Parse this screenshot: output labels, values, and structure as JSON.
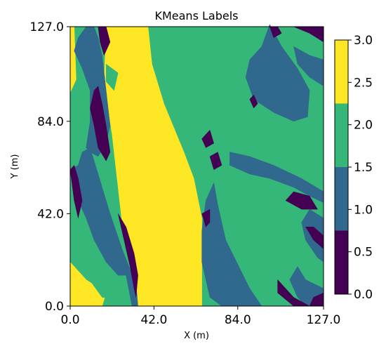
{
  "chart_data": {
    "type": "heatmap",
    "title": "KMeans Labels",
    "xlabel": "X (m)",
    "ylabel": "Y (m)",
    "xlim": [
      0,
      127
    ],
    "ylim": [
      0,
      127
    ],
    "x_ticks": [
      "0.0",
      "42.0",
      "84.0",
      "127.0"
    ],
    "y_ticks": [
      "0.0",
      "42.0",
      "84.0",
      "127.0"
    ],
    "colorbar": {
      "range": [
        0,
        3
      ],
      "ticks": [
        "0.0",
        "0.5",
        "1.0",
        "1.5",
        "2.0",
        "2.5",
        "3.0"
      ],
      "levels": [
        {
          "label": 0,
          "color": "#440154"
        },
        {
          "label": 1,
          "color": "#31688e"
        },
        {
          "label": 2,
          "color": "#35b779"
        },
        {
          "label": 3,
          "color": "#fde725"
        }
      ]
    },
    "regions": [
      {
        "label": 3,
        "polygon": [
          [
            0,
            97
          ],
          [
            3,
            103
          ],
          [
            2,
            127
          ],
          [
            0,
            127
          ]
        ]
      },
      {
        "label": 3,
        "polygon": [
          [
            4,
            0
          ],
          [
            16,
            0
          ],
          [
            18,
            6
          ],
          [
            8,
            12
          ],
          [
            2,
            18
          ],
          [
            0,
            20
          ],
          [
            0,
            0
          ]
        ]
      },
      {
        "label": 3,
        "polygon": [
          [
            18,
            127
          ],
          [
            39,
            127
          ],
          [
            41,
            110
          ],
          [
            47,
            92
          ],
          [
            57,
            70
          ],
          [
            62,
            58
          ],
          [
            66,
            40
          ],
          [
            66,
            0
          ],
          [
            34,
            0
          ],
          [
            33,
            10
          ],
          [
            26,
            38
          ],
          [
            21,
            78
          ],
          [
            17,
            102
          ]
        ]
      },
      {
        "label": 2,
        "polygon": [
          [
            5,
            127
          ],
          [
            11,
            127
          ],
          [
            10,
            118
          ],
          [
            6,
            110
          ],
          [
            4,
            120
          ]
        ]
      },
      {
        "label": 2,
        "polygon": [
          [
            18,
            110
          ],
          [
            24,
            106
          ],
          [
            22,
            98
          ],
          [
            18,
            102
          ]
        ]
      },
      {
        "label": 2,
        "polygon": [
          [
            4,
            30
          ],
          [
            12,
            18
          ],
          [
            20,
            12
          ],
          [
            24,
            3
          ],
          [
            16,
            4
          ],
          [
            8,
            14
          ],
          [
            2,
            26
          ]
        ]
      },
      {
        "label": 2,
        "polygon": [
          [
            40,
            127
          ],
          [
            127,
            127
          ],
          [
            127,
            97
          ],
          [
            115,
            97
          ],
          [
            102,
            91
          ],
          [
            91,
            84
          ],
          [
            90,
            104
          ],
          [
            100,
            118
          ],
          [
            110,
            124
          ],
          [
            98,
            124
          ],
          [
            84,
            110
          ],
          [
            74,
            102
          ],
          [
            64,
            94
          ],
          [
            62,
            84
          ],
          [
            58,
            80
          ],
          [
            55,
            92
          ],
          [
            50,
            106
          ],
          [
            44,
            116
          ]
        ]
      },
      {
        "label": 2,
        "polygon": [
          [
            64,
            84
          ],
          [
            68,
            76
          ],
          [
            80,
            74
          ],
          [
            92,
            74
          ],
          [
            102,
            70
          ],
          [
            115,
            68
          ],
          [
            127,
            71
          ],
          [
            127,
            79
          ],
          [
            114,
            80
          ],
          [
            104,
            80
          ],
          [
            94,
            82
          ],
          [
            82,
            79
          ],
          [
            72,
            80
          ]
        ]
      },
      {
        "label": 2,
        "polygon": [
          [
            78,
            54
          ],
          [
            86,
            42
          ],
          [
            98,
            26
          ],
          [
            106,
            16
          ],
          [
            110,
            10
          ],
          [
            112,
            20
          ],
          [
            114,
            32
          ],
          [
            112,
            44
          ],
          [
            100,
            50
          ],
          [
            88,
            56
          ]
        ]
      },
      {
        "label": 1,
        "polygon": [
          [
            88,
            104
          ],
          [
            92,
            94
          ],
          [
            102,
            88
          ],
          [
            112,
            84
          ],
          [
            119,
            86
          ],
          [
            120,
            98
          ],
          [
            114,
            108
          ],
          [
            106,
            118
          ],
          [
            100,
            128
          ],
          [
            96,
            118
          ],
          [
            90,
            112
          ]
        ]
      },
      {
        "label": 1,
        "polygon": [
          [
            112,
            118
          ],
          [
            120,
            114
          ],
          [
            127,
            112
          ],
          [
            127,
            100
          ],
          [
            120,
            104
          ],
          [
            114,
            110
          ]
        ]
      },
      {
        "label": 1,
        "polygon": [
          [
            127,
            20
          ],
          [
            124,
            22
          ],
          [
            118,
            30
          ],
          [
            116,
            38
          ],
          [
            120,
            44
          ],
          [
            127,
            40
          ]
        ]
      },
      {
        "label": 1,
        "polygon": [
          [
            80,
            64
          ],
          [
            90,
            60
          ],
          [
            100,
            58
          ],
          [
            112,
            54
          ],
          [
            120,
            50
          ],
          [
            127,
            47
          ],
          [
            127,
            52
          ],
          [
            116,
            58
          ],
          [
            102,
            64
          ],
          [
            90,
            68
          ],
          [
            80,
            70
          ]
        ]
      },
      {
        "label": 1,
        "polygon": [
          [
            66,
            20
          ],
          [
            70,
            4
          ],
          [
            76,
            0
          ],
          [
            96,
            0
          ],
          [
            90,
            8
          ],
          [
            78,
            30
          ],
          [
            74,
            46
          ],
          [
            72,
            56
          ],
          [
            68,
            48
          ],
          [
            66,
            34
          ]
        ]
      },
      {
        "label": 1,
        "polygon": [
          [
            0,
            62
          ],
          [
            2,
            52
          ],
          [
            8,
            40
          ],
          [
            12,
            30
          ],
          [
            18,
            20
          ],
          [
            24,
            14
          ],
          [
            28,
            14
          ],
          [
            31,
            0
          ],
          [
            34,
            0
          ],
          [
            33,
            10
          ],
          [
            26,
            26
          ],
          [
            20,
            42
          ],
          [
            14,
            60
          ],
          [
            10,
            72
          ],
          [
            6,
            70
          ],
          [
            4,
            64
          ]
        ]
      },
      {
        "label": 1,
        "polygon": [
          [
            2,
            116
          ],
          [
            6,
            108
          ],
          [
            10,
            98
          ],
          [
            10,
            84
          ],
          [
            8,
            72
          ],
          [
            10,
            70
          ],
          [
            14,
            68
          ],
          [
            18,
            74
          ],
          [
            20,
            82
          ],
          [
            18,
            98
          ],
          [
            16,
            114
          ],
          [
            14,
            122
          ],
          [
            12,
            127
          ],
          [
            8,
            127
          ],
          [
            4,
            122
          ]
        ]
      },
      {
        "label": 1,
        "polygon": [
          [
            110,
            12
          ],
          [
            114,
            4
          ],
          [
            118,
            0
          ],
          [
            127,
            0
          ],
          [
            127,
            8
          ],
          [
            118,
            12
          ],
          [
            114,
            18
          ]
        ]
      },
      {
        "label": 0,
        "polygon": [
          [
            10,
            90
          ],
          [
            12,
            82
          ],
          [
            14,
            72
          ],
          [
            18,
            66
          ],
          [
            20,
            70
          ],
          [
            18,
            82
          ],
          [
            16,
            92
          ],
          [
            14,
            100
          ],
          [
            12,
            98
          ]
        ]
      },
      {
        "label": 0,
        "polygon": [
          [
            0,
            62
          ],
          [
            2,
            48
          ],
          [
            4,
            40
          ],
          [
            6,
            48
          ],
          [
            4,
            58
          ],
          [
            2,
            64
          ]
        ]
      },
      {
        "label": 0,
        "polygon": [
          [
            14,
            127
          ],
          [
            18,
            127
          ],
          [
            20,
            120
          ],
          [
            17,
            114
          ],
          [
            15,
            120
          ]
        ]
      },
      {
        "label": 0,
        "polygon": [
          [
            24,
            42
          ],
          [
            26,
            34
          ],
          [
            28,
            26
          ],
          [
            30,
            18
          ],
          [
            32,
            8
          ],
          [
            33,
            4
          ],
          [
            34,
            14
          ],
          [
            32,
            24
          ],
          [
            28,
            36
          ]
        ]
      },
      {
        "label": 0,
        "polygon": [
          [
            66,
            42
          ],
          [
            68,
            36
          ],
          [
            70,
            38
          ],
          [
            70,
            44
          ]
        ]
      },
      {
        "label": 0,
        "polygon": [
          [
            70,
            68
          ],
          [
            74,
            70
          ],
          [
            76,
            64
          ],
          [
            72,
            62
          ]
        ]
      },
      {
        "label": 0,
        "polygon": [
          [
            66,
            76
          ],
          [
            68,
            72
          ],
          [
            72,
            74
          ],
          [
            70,
            80
          ]
        ]
      },
      {
        "label": 0,
        "polygon": [
          [
            100,
            127
          ],
          [
            104,
            127
          ],
          [
            106,
            124
          ],
          [
            102,
            122
          ]
        ]
      },
      {
        "label": 0,
        "polygon": [
          [
            112,
            127
          ],
          [
            127,
            127
          ],
          [
            127,
            120
          ],
          [
            120,
            124
          ]
        ]
      },
      {
        "label": 0,
        "polygon": [
          [
            104,
            12
          ],
          [
            112,
            4
          ],
          [
            120,
            0
          ],
          [
            112,
            0
          ],
          [
            104,
            6
          ]
        ]
      },
      {
        "label": 0,
        "polygon": [
          [
            118,
            36
          ],
          [
            122,
            30
          ],
          [
            127,
            26
          ],
          [
            127,
            32
          ],
          [
            122,
            36
          ]
        ]
      },
      {
        "label": 0,
        "polygon": [
          [
            108,
            48
          ],
          [
            116,
            44
          ],
          [
            124,
            44
          ],
          [
            120,
            50
          ],
          [
            112,
            52
          ]
        ]
      },
      {
        "label": 0,
        "polygon": [
          [
            120,
            0
          ],
          [
            127,
            0
          ],
          [
            127,
            6
          ],
          [
            122,
            4
          ]
        ]
      },
      {
        "label": 0,
        "polygon": [
          [
            90,
            94
          ],
          [
            92,
            90
          ],
          [
            94,
            92
          ],
          [
            92,
            96
          ]
        ]
      }
    ]
  }
}
